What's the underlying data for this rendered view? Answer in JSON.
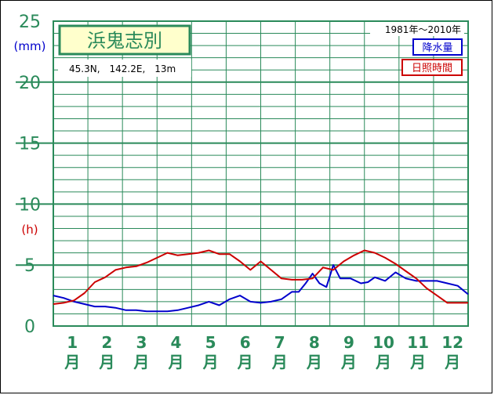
{
  "chart_data": {
    "type": "line",
    "title": "浜鬼志別",
    "location": "45.3N,　142.2E,　13m",
    "period": "1981年〜2010年",
    "y_unit_precip": "(mm)",
    "y_unit_sun": "(h)",
    "yticks": [
      "25",
      "20",
      "15",
      "10",
      "5",
      "0"
    ],
    "ylim": [
      0,
      25
    ],
    "months": [
      "1",
      "2",
      "3",
      "4",
      "5",
      "6",
      "7",
      "8",
      "9",
      "10",
      "11",
      "12"
    ],
    "month_suffix": "月",
    "series": [
      {
        "name": "降水量",
        "color": "#0000cc",
        "x": [
          0.0,
          0.3,
          0.6,
          0.9,
          1.2,
          1.5,
          1.8,
          2.1,
          2.4,
          2.7,
          3.0,
          3.3,
          3.6,
          3.9,
          4.2,
          4.5,
          4.8,
          5.1,
          5.4,
          5.7,
          6.0,
          6.3,
          6.6,
          6.9,
          7.1,
          7.3,
          7.5,
          7.7,
          7.9,
          8.1,
          8.3,
          8.6,
          8.9,
          9.1,
          9.3,
          9.6,
          9.9,
          10.2,
          10.5,
          10.8,
          11.1,
          11.4,
          11.7,
          12.0
        ],
        "values": [
          2.5,
          2.3,
          2.0,
          1.8,
          1.6,
          1.6,
          1.5,
          1.3,
          1.3,
          1.2,
          1.2,
          1.2,
          1.3,
          1.5,
          1.7,
          2.0,
          1.7,
          2.2,
          2.5,
          2.0,
          1.9,
          2.0,
          2.2,
          2.8,
          2.8,
          3.5,
          4.3,
          3.5,
          3.2,
          5.0,
          3.9,
          3.9,
          3.5,
          3.6,
          4.0,
          3.7,
          4.4,
          3.9,
          3.7,
          3.7,
          3.7,
          3.5,
          3.3,
          2.6
        ]
      },
      {
        "name": "日照時間",
        "color": "#cc0000",
        "x": [
          0.0,
          0.3,
          0.6,
          0.9,
          1.2,
          1.5,
          1.8,
          2.1,
          2.4,
          2.7,
          3.0,
          3.3,
          3.6,
          3.9,
          4.2,
          4.5,
          4.8,
          5.1,
          5.4,
          5.7,
          6.0,
          6.3,
          6.6,
          6.9,
          7.2,
          7.5,
          7.8,
          8.1,
          8.4,
          8.7,
          9.0,
          9.3,
          9.6,
          9.9,
          10.2,
          10.5,
          10.8,
          11.1,
          11.4,
          11.7,
          12.0
        ],
        "values": [
          1.8,
          1.9,
          2.1,
          2.7,
          3.6,
          4.0,
          4.6,
          4.8,
          4.9,
          5.2,
          5.6,
          6.0,
          5.8,
          5.9,
          6.0,
          6.2,
          5.9,
          5.9,
          5.3,
          4.6,
          5.3,
          4.6,
          3.9,
          3.8,
          3.8,
          3.9,
          4.8,
          4.6,
          5.3,
          5.8,
          6.2,
          6.0,
          5.6,
          5.1,
          4.5,
          3.9,
          3.1,
          2.5,
          1.9,
          1.9,
          1.9
        ]
      }
    ],
    "grid": true,
    "legend_placement": "top-right"
  }
}
